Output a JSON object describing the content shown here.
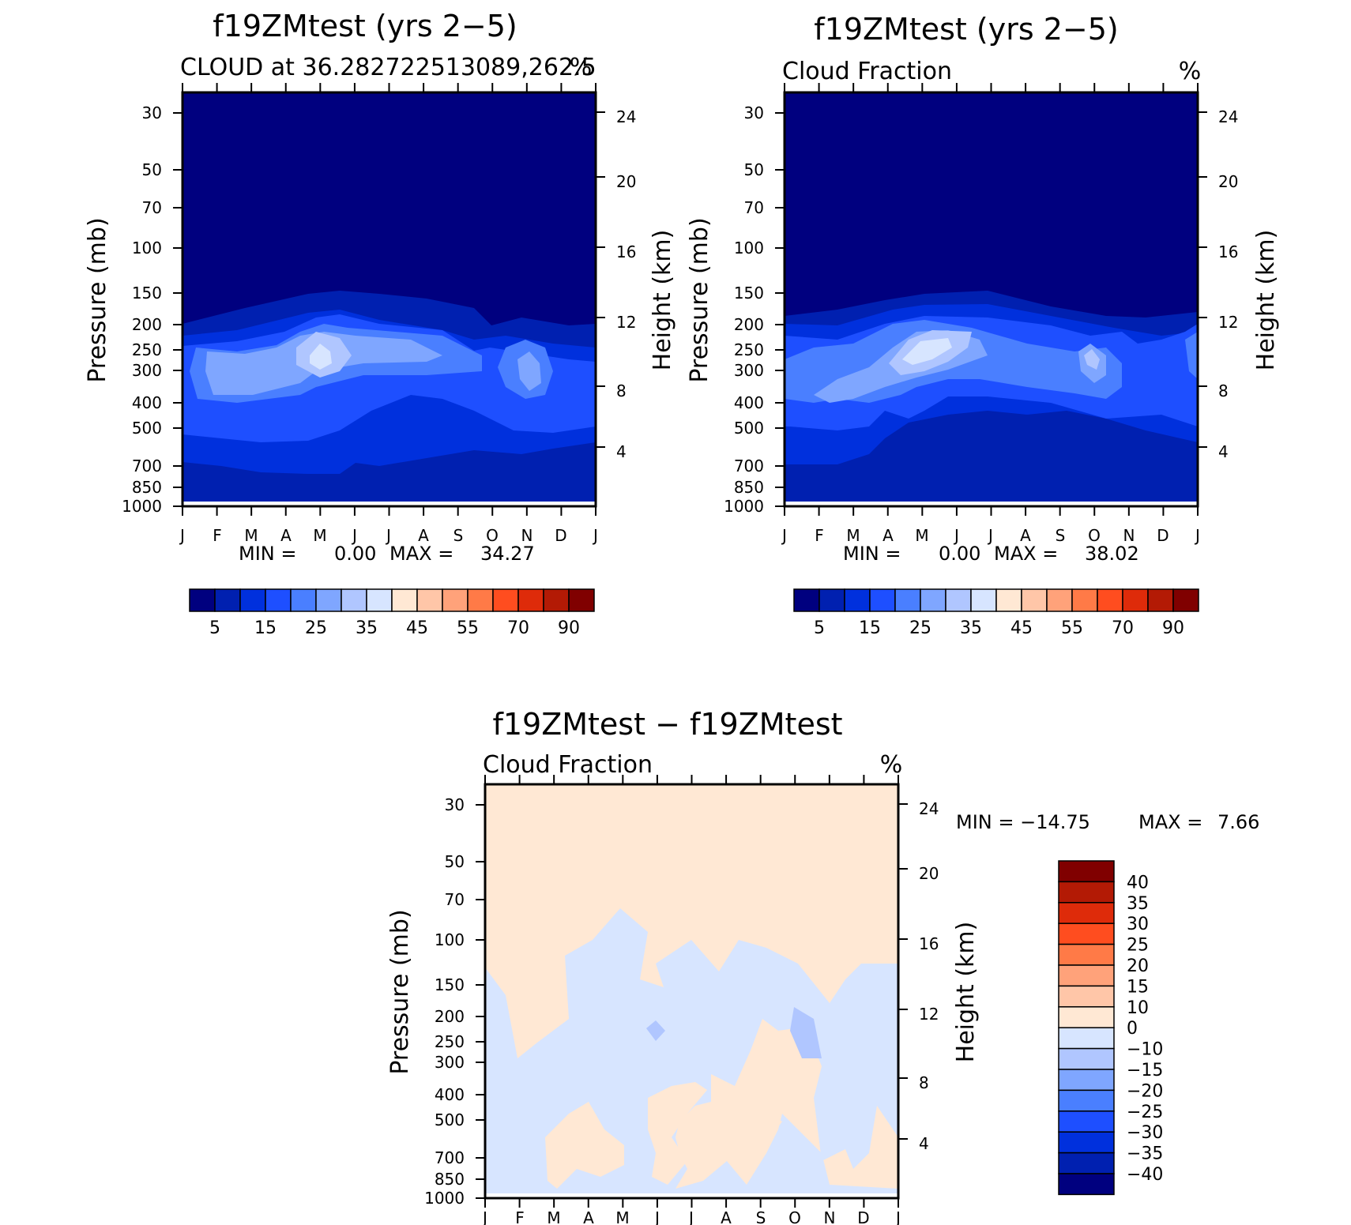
{
  "chart_data": [
    {
      "type": "heatmap",
      "title": "f19ZMtest (yrs 2−5)",
      "subtitle_left": "CLOUD at 36.282722513089,262.5",
      "subtitle_right": "%",
      "ylabel_left": "Pressure (mb)",
      "ylabel_right": "Height (km)",
      "x_ticks": [
        "J",
        "F",
        "M",
        "A",
        "M",
        "J",
        "J",
        "A",
        "S",
        "O",
        "N",
        "D",
        "J"
      ],
      "pressure_ticks": [
        "30",
        "50",
        "70",
        "100",
        "150",
        "200",
        "250",
        "300",
        "400",
        "500",
        "700",
        "850",
        "1000"
      ],
      "height_ticks": [
        "24",
        "20",
        "16",
        "12",
        "8",
        "4"
      ],
      "min_label": "MIN =",
      "min_value": "0.00",
      "max_label": "MAX =",
      "max_value": "34.27",
      "colorbar_labels": [
        "5",
        "15",
        "25",
        "35",
        "45",
        "55",
        "70",
        "90"
      ],
      "colors": [
        "#00007f",
        "#0020b0",
        "#0030dd",
        "#1e4fff",
        "#4a7fff",
        "#7fa6ff",
        "#b0c6ff",
        "#d7e5ff",
        "#ffe8d4",
        "#ffc6a8",
        "#ffa27a",
        "#ff7a47",
        "#ff4d1f",
        "#de2b0a",
        "#b31a05",
        "#800000"
      ]
    },
    {
      "type": "heatmap",
      "title": "f19ZMtest (yrs 2−5)",
      "subtitle_left": "Cloud Fraction",
      "subtitle_right": "%",
      "ylabel_left": "Pressure (mb)",
      "ylabel_right": "Height (km)",
      "x_ticks": [
        "J",
        "F",
        "M",
        "A",
        "M",
        "J",
        "J",
        "A",
        "S",
        "O",
        "N",
        "D",
        "J"
      ],
      "pressure_ticks": [
        "30",
        "50",
        "70",
        "100",
        "150",
        "200",
        "250",
        "300",
        "400",
        "500",
        "700",
        "850",
        "1000"
      ],
      "height_ticks": [
        "24",
        "20",
        "16",
        "12",
        "8",
        "4"
      ],
      "min_label": "MIN =",
      "min_value": "0.00",
      "max_label": "MAX =",
      "max_value": "38.02",
      "colorbar_labels": [
        "5",
        "15",
        "25",
        "35",
        "45",
        "55",
        "70",
        "90"
      ],
      "colors": [
        "#00007f",
        "#0020b0",
        "#0030dd",
        "#1e4fff",
        "#4a7fff",
        "#7fa6ff",
        "#b0c6ff",
        "#d7e5ff",
        "#ffe8d4",
        "#ffc6a8",
        "#ffa27a",
        "#ff7a47",
        "#ff4d1f",
        "#de2b0a",
        "#b31a05",
        "#800000"
      ]
    },
    {
      "type": "heatmap",
      "title": "f19ZMtest − f19ZMtest",
      "subtitle_left": "Cloud Fraction",
      "subtitle_right": "%",
      "ylabel_left": "Pressure (mb)",
      "ylabel_right": "Height (km)",
      "x_ticks": [
        "J",
        "F",
        "M",
        "A",
        "M",
        "J",
        "J",
        "A",
        "S",
        "O",
        "N",
        "D",
        "J"
      ],
      "pressure_ticks": [
        "30",
        "50",
        "70",
        "100",
        "150",
        "200",
        "250",
        "300",
        "400",
        "500",
        "700",
        "850",
        "1000"
      ],
      "height_ticks": [
        "24",
        "20",
        "16",
        "12",
        "8",
        "4"
      ],
      "min_label": "MIN = −14.75",
      "max_label": "MAX =",
      "max_value": "7.66",
      "colorbar_labels": [
        "40",
        "35",
        "30",
        "25",
        "20",
        "15",
        "10",
        "0",
        "−10",
        "−15",
        "−20",
        "−25",
        "−30",
        "−35",
        "−40"
      ],
      "colors": [
        "#800000",
        "#b31a05",
        "#de2b0a",
        "#ff4d1f",
        "#ff7a47",
        "#ffa27a",
        "#ffc6a8",
        "#ffe8d4",
        "#d7e5ff",
        "#b0c6ff",
        "#7fa6ff",
        "#4a7fff",
        "#1e4fff",
        "#0030dd",
        "#0020b0",
        "#00007f"
      ]
    }
  ]
}
